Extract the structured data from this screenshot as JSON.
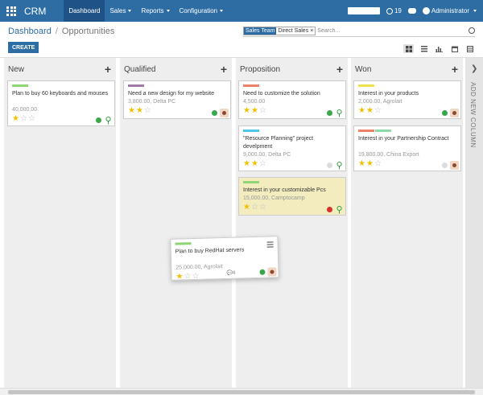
{
  "app": {
    "name": "CRM"
  },
  "nav": {
    "items": [
      {
        "label": "Dashboard",
        "active": true,
        "dropdown": false
      },
      {
        "label": "Sales",
        "active": false,
        "dropdown": true
      },
      {
        "label": "Reports",
        "active": false,
        "dropdown": true
      },
      {
        "label": "Configuration",
        "active": false,
        "dropdown": true
      }
    ]
  },
  "systray": {
    "activity_count": "19",
    "user": "Administrator"
  },
  "breadcrumb": {
    "parent": "Dashboard",
    "separator": "/",
    "current": "Opportunities"
  },
  "create_button": {
    "label": "CREATE"
  },
  "search": {
    "facet_category": "Sales Team",
    "facet_value": "Direct Sales",
    "facet_remove": "×",
    "placeholder": "Search..."
  },
  "views": [
    "kanban",
    "list",
    "graph",
    "calendar",
    "pivot"
  ],
  "columns": [
    {
      "title": "New",
      "add": "+"
    },
    {
      "title": "Qualified",
      "add": "+"
    },
    {
      "title": "Proposition",
      "add": "+"
    },
    {
      "title": "Won",
      "add": "+"
    }
  ],
  "cards": [
    {
      "name": "Plan to buy 60 keyboards and mouses",
      "amount": "40,000.00",
      "stars": 1,
      "tags": [
        "#8fd475"
      ],
      "status": "#3aa84a",
      "avatar": "green"
    },
    {
      "name": "Need a new design for my website",
      "amount": "3,800.00, Delta PC",
      "stars": 2,
      "tags": [
        "#a07aa8"
      ],
      "status": "#3aa84a",
      "avatar": "admin"
    },
    {
      "name": "Need to customize the solution",
      "amount": "4,500.00",
      "stars": 2,
      "tags": [
        "#ef8070"
      ],
      "status": "#3aa84a",
      "avatar": "green"
    },
    {
      "name": "\"Resource Planning\" project develpment",
      "amount": "9,000.00, Delta PC",
      "stars": 2,
      "tags": [
        "#4fc8e8"
      ],
      "status": "#dddddd",
      "avatar": "green"
    },
    {
      "name": "Interest in your customizable Pcs",
      "amount": "15,000.00, Camptocamp",
      "stars": 1,
      "tags": [
        "#8fd475"
      ],
      "status": "#d9302c",
      "avatar": "green"
    },
    {
      "name": "Interest in your products",
      "amount": "2,000.00, Agrolait",
      "stars": 2,
      "tags": [
        "#f3e04a"
      ],
      "status": "#3aa84a",
      "avatar": "admin"
    },
    {
      "name": "Interest in your Partnership Contract",
      "amount": "19,800.00, China Export",
      "stars": 2,
      "tags": [
        "#ef8070",
        "#8fd8a8"
      ],
      "status": "#dddddd",
      "avatar": "admin"
    },
    {
      "name": "Plan to buy RedHat servers",
      "amount": "25,000.00, Agrolait",
      "stars": 1,
      "tags": [
        "#8fd475"
      ],
      "status": "#3aa84a",
      "avatar": "admin",
      "messages": "4"
    }
  ],
  "add_column": {
    "label": "ADD NEW COLUMN",
    "chevron": "❯"
  }
}
